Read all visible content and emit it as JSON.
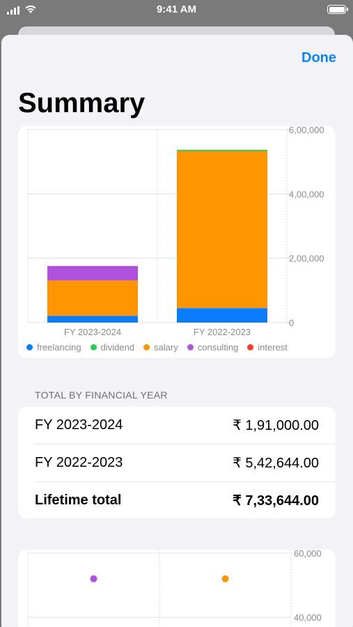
{
  "status_bar": {
    "time": "9:41 AM"
  },
  "header": {
    "done_label": "Done",
    "title": "Summary"
  },
  "legend": [
    {
      "label": "freelancing",
      "color": "#0a7cff"
    },
    {
      "label": "dividend",
      "color": "#34c759"
    },
    {
      "label": "salary",
      "color": "#ff9500"
    },
    {
      "label": "consulting",
      "color": "#af52de"
    },
    {
      "label": "interest",
      "color": "#ff3b30"
    }
  ],
  "chart_data": [
    {
      "type": "bar",
      "stacked": true,
      "categories": [
        "FY 2023-2024",
        "FY 2022-2023"
      ],
      "series": [
        {
          "name": "freelancing",
          "values": [
            21000,
            45000
          ]
        },
        {
          "name": "salary",
          "values": [
            110000,
            490000
          ]
        },
        {
          "name": "consulting",
          "values": [
            45000,
            0
          ]
        },
        {
          "name": "dividend",
          "values": [
            0,
            2000
          ]
        }
      ],
      "y_ticks": [
        "6,00,000",
        "4,00,000",
        "2,00,000",
        "0"
      ],
      "ylim": [
        0,
        600000
      ],
      "grid": true,
      "legend_position": "bottom"
    },
    {
      "type": "scatter",
      "points": [
        {
          "category": 0,
          "y": 52000,
          "color": "#af52de"
        },
        {
          "category": 1,
          "y": 52000,
          "color": "#ff9500"
        }
      ],
      "y_ticks": [
        "60,000",
        "40,000"
      ],
      "ylim": [
        40000,
        60000
      ],
      "grid": true
    }
  ],
  "totals": {
    "section_header": "TOTAL BY FINANCIAL YEAR",
    "rows": [
      {
        "label": "FY 2023-2024",
        "value": "₹ 1,91,000.00"
      },
      {
        "label": "FY 2022-2023",
        "value": "₹ 5,42,644.00"
      }
    ],
    "lifetime": {
      "label": "Lifetime total",
      "value": "₹ 7,33,644.00"
    }
  }
}
